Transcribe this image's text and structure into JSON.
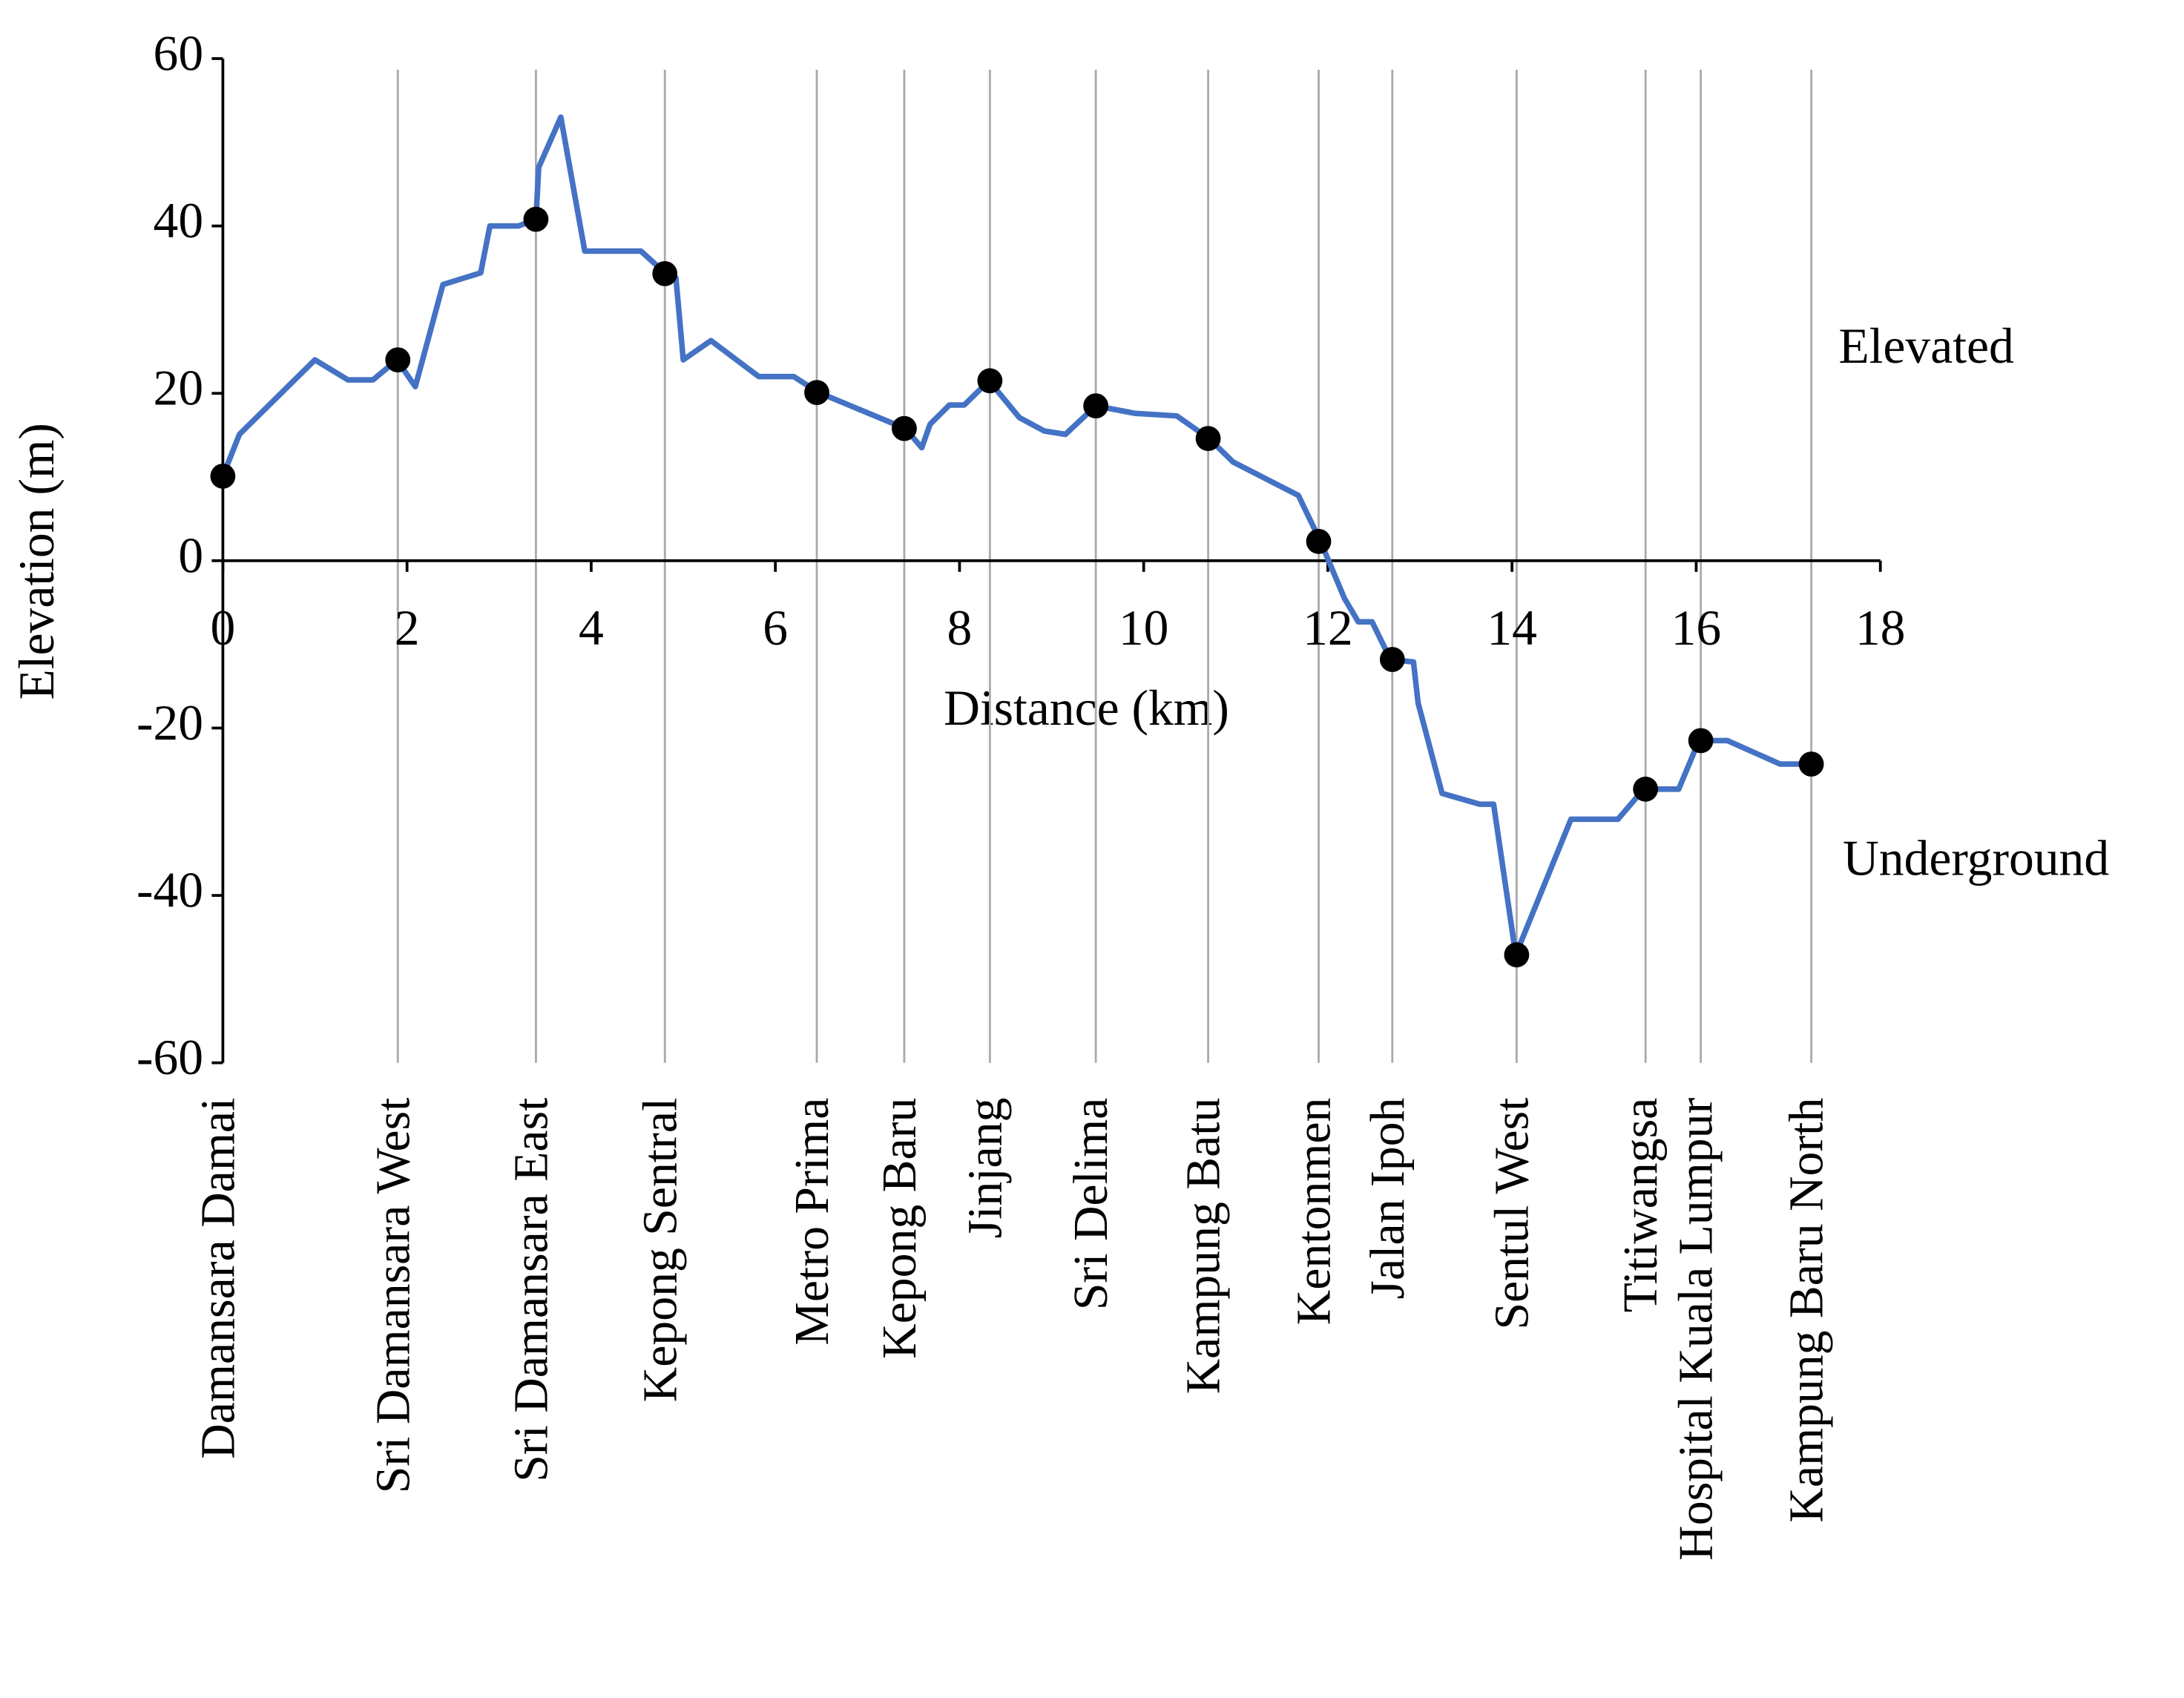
{
  "chart_data": {
    "type": "line",
    "xlabel": "Distance (km)",
    "ylabel": "Elevation (m)",
    "xlim": [
      0,
      18
    ],
    "ylim": [
      -60,
      60
    ],
    "xticks": [
      0,
      2,
      4,
      6,
      8,
      10,
      12,
      14,
      16,
      18
    ],
    "yticks": [
      -60,
      -40,
      -20,
      0,
      20,
      40,
      60
    ],
    "annotations": [
      "Elevated",
      "Underground"
    ],
    "series": [
      {
        "color": "#4472c4",
        "x": [
          0,
          0.18,
          1.0,
          1.36,
          1.63,
          1.89,
          2.09,
          2.39,
          2.8,
          2.9,
          3.21,
          3.4,
          3.43,
          3.67,
          3.93,
          4.54,
          4.81,
          4.92,
          5.0,
          5.3,
          5.82,
          6.2,
          6.47,
          7.41,
          7.59,
          7.68,
          7.89,
          8.05,
          8.32,
          8.65,
          8.92,
          9.15,
          9.48,
          9.91,
          10.36,
          10.71,
          10.97,
          11.68,
          11.92,
          12.18,
          12.33,
          12.48,
          12.68,
          12.93,
          12.98,
          13.24,
          13.65,
          13.8,
          14.04,
          14.64,
          15.15,
          15.43,
          15.81,
          16.03,
          16.34,
          16.91,
          17.29
        ],
        "values": [
          10.1,
          15.1,
          24,
          21.6,
          21.6,
          24,
          20.8,
          33,
          34.4,
          40,
          40,
          40.8,
          47,
          53,
          37,
          37,
          34.3,
          33.8,
          24,
          26.3,
          22,
          22,
          20.1,
          15.8,
          13.5,
          16.3,
          18.6,
          18.6,
          21.5,
          17.1,
          15.5,
          15.1,
          18.5,
          17.6,
          17.3,
          14.6,
          11.8,
          7.8,
          2.3,
          -4.5,
          -7.3,
          -7.3,
          -11.8,
          -12.1,
          -17,
          -27.8,
          -29.1,
          -29.1,
          -47.1,
          -30.9,
          -30.9,
          -27.3,
          -27.3,
          -21.5,
          -21.5,
          -24.3,
          -24.3
        ]
      }
    ],
    "stations": {
      "color": "#000000",
      "labels": [
        "Damansara Damai",
        "Sri Damansara West",
        "Sri Damansara East",
        "Kepong Sentral",
        "Metro Prima",
        "Kepong Baru",
        "Jinjang",
        "Sri Delima",
        "Kampung Batu",
        "Kentonmen",
        "Jalan Ipoh",
        "Sentul West",
        "Titiwangsa",
        "Hospital Kuala Lumpur",
        "Kampung Baru North"
      ],
      "x": [
        0,
        1.9,
        3.4,
        4.8,
        6.45,
        7.4,
        8.33,
        9.48,
        10.7,
        11.9,
        12.7,
        14.05,
        15.45,
        16.05,
        17.25
      ],
      "values": [
        10.1,
        24,
        40.8,
        34.3,
        20.1,
        15.8,
        21.5,
        18.5,
        14.6,
        2.3,
        -11.8,
        -47.1,
        -27.3,
        -21.5,
        -24.3
      ]
    }
  }
}
